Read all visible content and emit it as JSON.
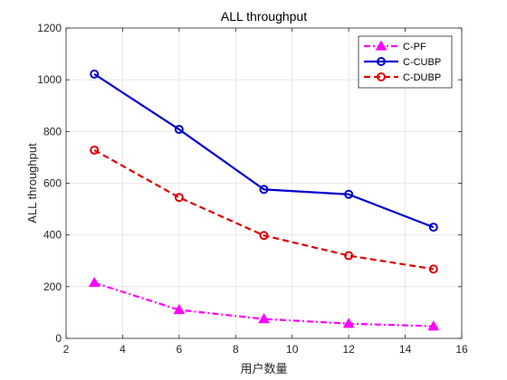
{
  "chart_data": {
    "type": "line",
    "title": "ALL throughput",
    "xlabel": "用户数量",
    "ylabel": "ALL throughput",
    "xlim": [
      2,
      16
    ],
    "ylim": [
      0,
      1200
    ],
    "xticks": [
      2,
      4,
      6,
      8,
      10,
      12,
      14,
      16
    ],
    "yticks": [
      0,
      200,
      400,
      600,
      800,
      1000,
      1200
    ],
    "grid": true,
    "legend_position": "top-right",
    "x": [
      3,
      6,
      9,
      12,
      15
    ],
    "series": [
      {
        "name": "C-PF",
        "values": [
          215,
          110,
          75,
          57,
          47
        ],
        "color": "#ff00ff",
        "line_style": "dash-dot",
        "marker": "triangle"
      },
      {
        "name": "C-CUBP",
        "values": [
          1022,
          808,
          576,
          557,
          430
        ],
        "color": "#0000cc",
        "line_style": "solid",
        "marker": "circle"
      },
      {
        "name": "C-DUBP",
        "values": [
          728,
          545,
          398,
          320,
          268
        ],
        "color": "#dd0000",
        "line_style": "dashed",
        "marker": "circle"
      }
    ]
  }
}
